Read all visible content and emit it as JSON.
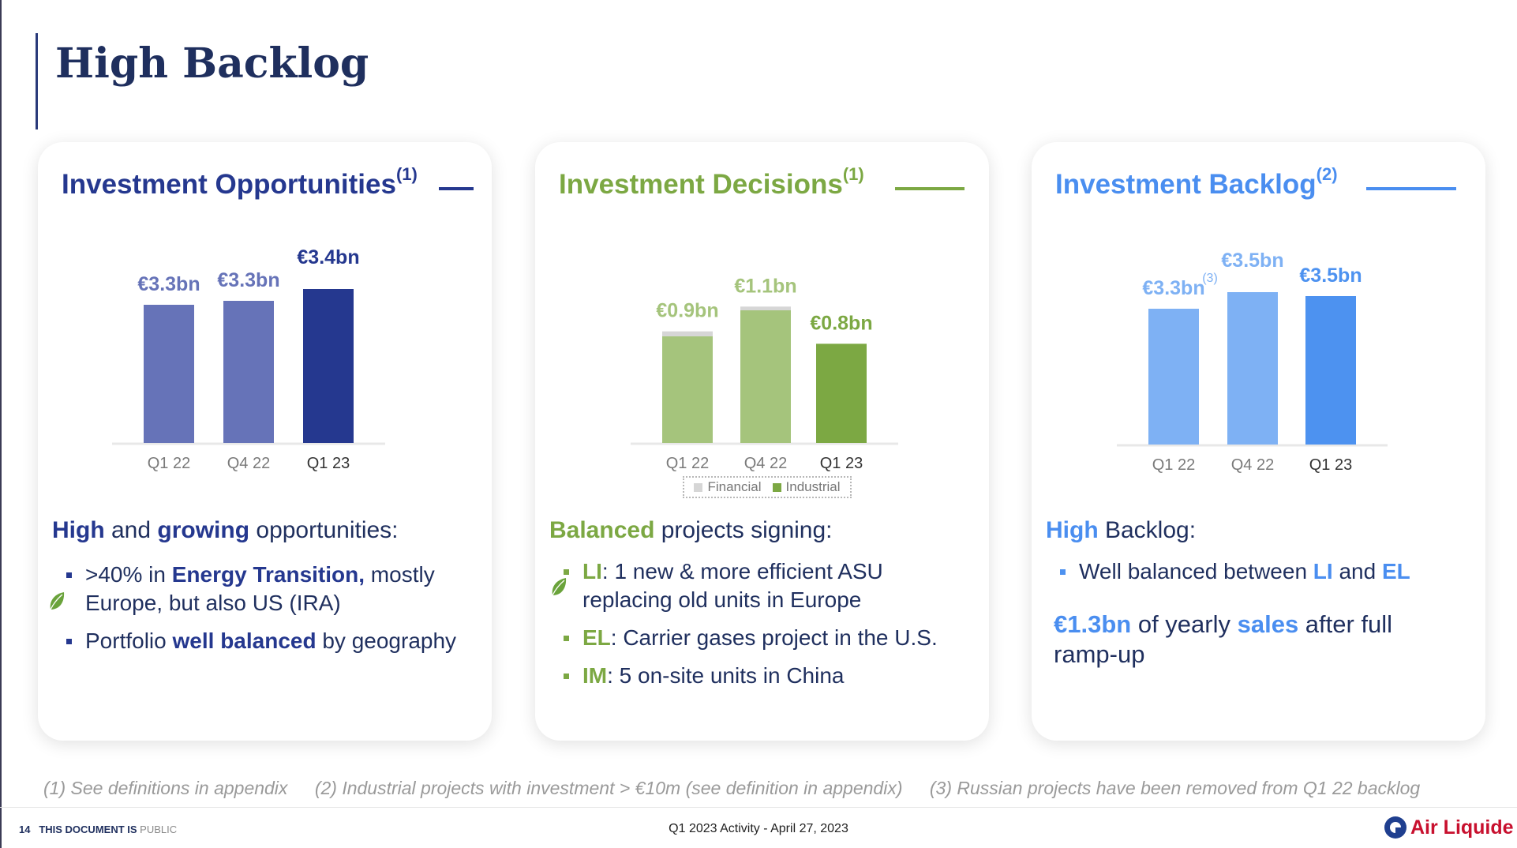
{
  "page": {
    "title": "High Backlog"
  },
  "colors": {
    "navy": "#25388f",
    "navy_light": "#6673b8",
    "green": "#7ca843",
    "green_light": "#a5c47c",
    "financial_gray": "#d6d6d6",
    "blue": "#4d92f0",
    "blue_light": "#7eb1f4",
    "blue_head": "#4a8ef0"
  },
  "cards": [
    {
      "id": "investment-opportunities",
      "title": "Investment Opportunities",
      "title_sup": "(1)",
      "headline": [
        "High",
        " and ",
        "growing",
        " opportunities:"
      ],
      "bullets": [
        {
          "parts": [
            ">40% in ",
            "Energy Transition,",
            " mostly Europe, but also US (IRA)"
          ]
        },
        {
          "parts": [
            "Portfolio ",
            "well balanced",
            " by geography"
          ]
        }
      ]
    },
    {
      "id": "investment-decisions",
      "title": "Investment Decisions",
      "title_sup": "(1)",
      "headline": [
        "Balanced",
        " projects signing:"
      ],
      "bullets": [
        {
          "parts": [
            "LI",
            ": 1 new & more efficient ASU replacing old units in Europe"
          ]
        },
        {
          "parts": [
            "EL",
            ": Carrier gases project in the U.S."
          ]
        },
        {
          "parts": [
            "IM",
            ": 5 on-site units in China"
          ]
        }
      ],
      "legend": [
        "Financial",
        "Industrial"
      ]
    },
    {
      "id": "investment-backlog",
      "title": "Investment Backlog",
      "title_sup": "(2)",
      "headline": [
        "High",
        " Backlog:"
      ],
      "bullets": [
        {
          "parts": [
            "Well balanced between ",
            "LI",
            " and ",
            "EL"
          ]
        }
      ],
      "extra": [
        "€1.3bn",
        " of yearly ",
        "sales",
        " after full ramp-up"
      ]
    }
  ],
  "chart_data": [
    {
      "type": "bar",
      "categories": [
        "Q1 22",
        "Q4 22",
        "Q1 23"
      ],
      "values": [
        3.3,
        3.3,
        3.4
      ],
      "labels": [
        "€3.3bn",
        "€3.3bn",
        "€3.4bn"
      ],
      "ylabel": "",
      "xlabel": ""
    },
    {
      "type": "bar",
      "categories": [
        "Q1 22",
        "Q4 22",
        "Q1 23"
      ],
      "series": [
        {
          "name": "Financial",
          "values": [
            0.04,
            0.03,
            0.0
          ]
        },
        {
          "name": "Industrial",
          "values": [
            0.86,
            1.07,
            0.8
          ]
        }
      ],
      "labels": [
        "€0.9bn",
        "€1.1bn",
        "€0.8bn"
      ],
      "stacked": true
    },
    {
      "type": "bar",
      "categories": [
        "Q1 22",
        "Q4 22",
        "Q1 23"
      ],
      "values": [
        3.3,
        3.5,
        3.5
      ],
      "labels": [
        "€3.3bn",
        "€3.5bn",
        "€3.5bn"
      ],
      "label_sups": [
        "(3)",
        "",
        ""
      ]
    }
  ],
  "footnotes": [
    "(1) See definitions in appendix",
    "(2) Industrial projects with investment > €10m (see definition in appendix)",
    "(3) Russian projects have been removed from Q1 22 backlog"
  ],
  "footer": {
    "page_number": "14",
    "doc_label": "THIS DOCUMENT IS",
    "classification": "PUBLIC",
    "event": "Q1 2023 Activity - April 27, 2023",
    "logo_text": "Air Liquide"
  }
}
